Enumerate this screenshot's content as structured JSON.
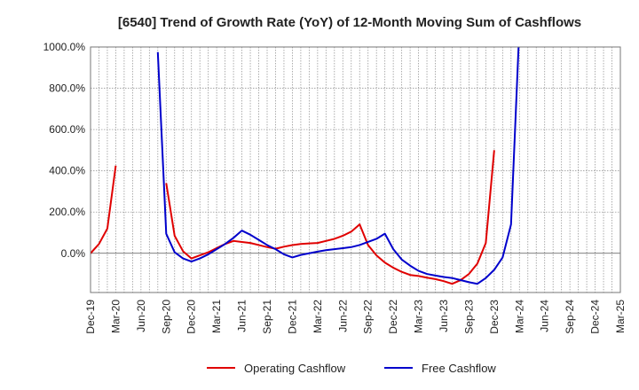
{
  "chart_data": {
    "type": "line",
    "title": "[6540]  Trend of Growth Rate (YoY) of 12-Month Moving Sum of Cashflows",
    "xlabel": "",
    "ylabel": "",
    "x_ticks": [
      "Dec-19",
      "Mar-20",
      "Jun-20",
      "Sep-20",
      "Dec-20",
      "Mar-21",
      "Jun-21",
      "Sep-21",
      "Dec-21",
      "Mar-22",
      "Jun-22",
      "Sep-22",
      "Dec-22",
      "Mar-23",
      "Jun-23",
      "Sep-23",
      "Dec-23",
      "Mar-24",
      "Jun-24",
      "Sep-24",
      "Dec-24",
      "Mar-25"
    ],
    "y_ticks": [
      "1000.0%",
      "800.0%",
      "600.0%",
      "400.0%",
      "200.0%",
      "0.0%"
    ],
    "ylim": [
      -190,
      1000
    ],
    "grid": true,
    "legend_position": "bottom",
    "series": [
      {
        "name": "Operating Cashflow",
        "color": "#e00000",
        "points": [
          [
            0,
            0
          ],
          [
            1,
            45
          ],
          [
            2,
            120
          ],
          [
            3,
            425
          ],
          null,
          [
            9,
            340
          ],
          [
            10,
            85
          ],
          [
            11,
            10
          ],
          [
            12,
            -25
          ],
          [
            13,
            -10
          ],
          [
            14,
            5
          ],
          [
            15,
            25
          ],
          [
            16,
            45
          ],
          [
            17,
            60
          ],
          [
            18,
            55
          ],
          [
            19,
            50
          ],
          [
            20,
            40
          ],
          [
            21,
            30
          ],
          [
            22,
            22
          ],
          [
            23,
            32
          ],
          [
            24,
            40
          ],
          [
            25,
            45
          ],
          [
            26,
            48
          ],
          [
            27,
            50
          ],
          [
            28,
            60
          ],
          [
            29,
            70
          ],
          [
            30,
            85
          ],
          [
            31,
            105
          ],
          [
            32,
            140
          ],
          [
            33,
            40
          ],
          [
            34,
            -10
          ],
          [
            35,
            -45
          ],
          [
            36,
            -70
          ],
          [
            37,
            -90
          ],
          [
            38,
            -105
          ],
          [
            39,
            -110
          ],
          [
            40,
            -118
          ],
          [
            41,
            -125
          ],
          [
            42,
            -135
          ],
          [
            43,
            -148
          ],
          [
            44,
            -130
          ],
          [
            45,
            -100
          ],
          [
            46,
            -50
          ],
          [
            47,
            50
          ],
          [
            48,
            500
          ]
        ]
      },
      {
        "name": "Free Cashflow",
        "color": "#0000cc",
        "points": [
          [
            8,
            975
          ],
          [
            9,
            95
          ],
          [
            10,
            5
          ],
          [
            11,
            -25
          ],
          [
            12,
            -40
          ],
          [
            13,
            -25
          ],
          [
            14,
            -5
          ],
          [
            15,
            20
          ],
          [
            16,
            45
          ],
          [
            17,
            75
          ],
          [
            18,
            110
          ],
          [
            19,
            90
          ],
          [
            20,
            65
          ],
          [
            21,
            40
          ],
          [
            22,
            20
          ],
          [
            23,
            -5
          ],
          [
            24,
            -20
          ],
          [
            25,
            -8
          ],
          [
            26,
            0
          ],
          [
            27,
            8
          ],
          [
            28,
            15
          ],
          [
            29,
            20
          ],
          [
            30,
            25
          ],
          [
            31,
            30
          ],
          [
            32,
            40
          ],
          [
            33,
            55
          ],
          [
            34,
            70
          ],
          [
            35,
            95
          ],
          [
            36,
            20
          ],
          [
            37,
            -30
          ],
          [
            38,
            -60
          ],
          [
            39,
            -85
          ],
          [
            40,
            -100
          ],
          [
            41,
            -108
          ],
          [
            42,
            -115
          ],
          [
            43,
            -120
          ],
          [
            44,
            -130
          ],
          [
            45,
            -140
          ],
          [
            46,
            -148
          ],
          [
            47,
            -120
          ],
          [
            48,
            -80
          ],
          [
            49,
            -20
          ],
          [
            50,
            140
          ],
          [
            51,
            1100
          ]
        ]
      }
    ]
  }
}
